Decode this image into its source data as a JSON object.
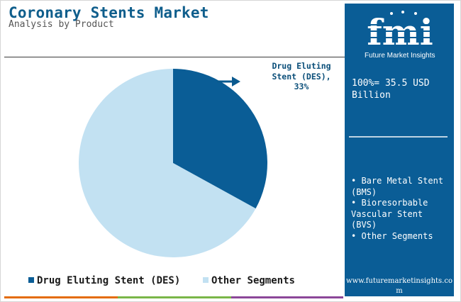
{
  "header": {
    "title": "Coronary Stents Market",
    "subtitle": "Analysis by Product"
  },
  "side_panel": {
    "logo_text": "Future Market Insights",
    "total_label": "100%= 35.5 USD Billion",
    "other_segments": [
      "• Bare Metal Stent (BMS)",
      "• Bioresorbable Vascular Stent (BVS)",
      "• Other Segments"
    ],
    "website": "www.futuremarketinsights.com"
  },
  "callout": "Drug Eluting Stent (DES), 33%",
  "colors": {
    "brand_blue": "#0a5d96",
    "des": "#0a5d96",
    "other": "#c2e1f2",
    "bottom_bar": [
      "#e46c0a",
      "#7ab648",
      "#8c4799"
    ]
  },
  "chart_data": {
    "type": "pie",
    "slices": [
      {
        "name": "Drug Eluting Stent (DES)",
        "value": 33,
        "color": "#0a5d96"
      },
      {
        "name": "Other Segments",
        "value": 67,
        "color": "#c2e1f2"
      }
    ],
    "start_angle": "12 o'clock",
    "direction": "clockwise",
    "legend_position": "bottom"
  },
  "legend": [
    {
      "label": "Drug Eluting Stent (DES)",
      "color": "#0a5d96"
    },
    {
      "label": "Other Segments",
      "color": "#c2e1f2"
    }
  ]
}
